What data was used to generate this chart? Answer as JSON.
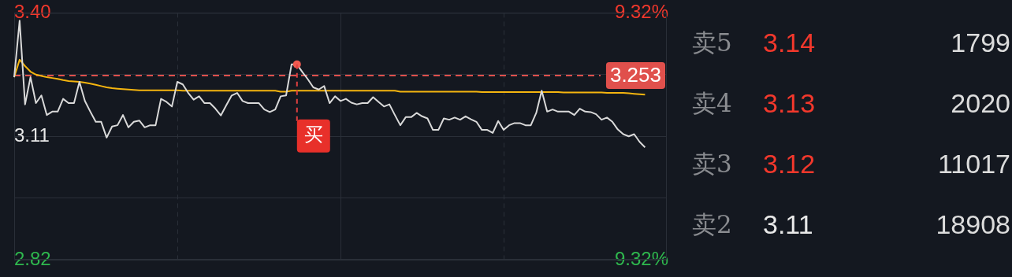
{
  "chart_data": [
    {
      "type": "line",
      "categories": [
        null,
        null,
        null,
        null,
        null,
        null,
        null,
        null,
        null,
        null,
        null,
        null,
        null,
        null,
        null,
        null,
        null,
        null,
        null,
        null,
        null,
        null,
        null,
        null,
        null,
        null,
        null,
        null,
        null,
        null,
        null,
        null,
        null,
        null,
        null,
        null,
        null,
        null,
        null,
        null,
        null,
        null,
        null,
        null,
        null,
        null,
        null,
        null,
        null,
        null,
        null,
        null,
        null,
        null,
        null,
        null,
        null,
        null,
        null,
        null,
        null,
        null,
        null,
        null,
        null,
        null,
        null,
        null,
        null,
        null,
        null,
        null,
        null,
        null,
        null,
        null,
        null,
        null,
        null,
        null,
        null,
        null,
        null,
        null,
        null,
        null,
        null,
        null,
        null,
        null,
        null,
        null,
        null,
        null,
        null,
        null,
        null,
        null,
        null,
        null,
        null,
        null,
        null,
        null,
        null,
        null,
        null,
        null,
        null,
        null,
        null,
        null,
        null,
        null,
        null,
        null,
        null,
        null,
        null,
        null,
        null
      ],
      "series": [
        {
          "color": "#d9d9d9",
          "values": [
            3.249,
            3.382,
            3.185,
            3.249,
            3.188,
            3.206,
            3.16,
            3.168,
            3.168,
            3.198,
            3.188,
            3.188,
            3.238,
            3.193,
            3.168,
            3.144,
            3.144,
            3.107,
            3.133,
            3.136,
            3.16,
            3.131,
            3.144,
            3.147,
            3.131,
            3.136,
            3.136,
            3.198,
            3.191,
            3.18,
            3.238,
            3.232,
            3.212,
            3.196,
            3.204,
            3.188,
            3.188,
            3.175,
            3.159,
            3.183,
            3.206,
            3.212,
            3.193,
            3.188,
            3.188,
            3.188,
            3.173,
            3.167,
            3.173,
            3.204,
            3.206,
            3.279,
            3.279,
            3.261,
            3.244,
            3.225,
            3.22,
            3.228,
            3.188,
            3.204,
            3.193,
            3.198,
            3.189,
            3.185,
            3.188,
            3.188,
            3.202,
            3.191,
            3.18,
            3.185,
            3.16,
            3.136,
            3.155,
            3.155,
            3.165,
            3.157,
            3.152,
            3.125,
            3.125,
            3.152,
            3.149,
            3.154,
            3.149,
            3.157,
            3.15,
            3.144,
            3.125,
            3.125,
            3.118,
            3.146,
            3.125,
            3.136,
            3.141,
            3.141,
            3.136,
            3.136,
            3.165,
            3.217,
            3.168,
            3.173,
            3.168,
            3.168,
            3.168,
            3.16,
            3.175,
            3.168,
            3.167,
            3.162,
            3.149,
            3.154,
            3.144,
            3.126,
            3.115,
            3.11,
            3.115,
            3.097,
            3.084,
            null,
            null,
            null,
            null
          ]
        },
        {
          "color": "#f5b50f",
          "values": [
            3.249,
            3.29,
            3.275,
            3.262,
            3.255,
            3.252,
            3.249,
            3.247,
            3.245,
            3.242,
            3.24,
            3.239,
            3.238,
            3.236,
            3.234,
            3.231,
            3.228,
            3.225,
            3.223,
            3.222,
            3.221,
            3.22,
            3.219,
            3.218,
            3.218,
            3.218,
            3.218,
            3.218,
            3.218,
            3.218,
            3.218,
            3.217,
            3.217,
            3.217,
            3.217,
            3.217,
            3.217,
            3.217,
            3.217,
            3.217,
            3.217,
            3.217,
            3.217,
            3.217,
            3.217,
            3.217,
            3.217,
            3.217,
            3.217,
            3.215,
            3.215,
            3.217,
            3.217,
            3.217,
            3.217,
            3.217,
            3.217,
            3.217,
            3.217,
            3.217,
            3.217,
            3.217,
            3.217,
            3.217,
            3.217,
            3.217,
            3.217,
            3.217,
            3.217,
            3.217,
            3.217,
            3.215,
            3.215,
            3.215,
            3.215,
            3.215,
            3.215,
            3.215,
            3.215,
            3.215,
            3.215,
            3.215,
            3.215,
            3.215,
            3.215,
            3.215,
            3.214,
            3.214,
            3.214,
            3.214,
            3.214,
            3.214,
            3.214,
            3.214,
            3.214,
            3.214,
            3.214,
            3.214,
            3.214,
            3.214,
            3.214,
            3.213,
            3.213,
            3.213,
            3.213,
            3.213,
            3.213,
            3.213,
            3.213,
            3.212,
            3.212,
            3.212,
            3.212,
            3.211,
            3.21,
            3.209,
            3.208,
            null,
            null,
            null,
            null
          ]
        }
      ],
      "ylim": [
        2.82,
        3.4
      ],
      "yticks": [
        {
          "value": 3.4,
          "label": "3.40"
        },
        {
          "value": 3.255,
          "label": null
        },
        {
          "value": 3.11,
          "label": "3.11"
        },
        {
          "value": 2.965,
          "label": null
        },
        {
          "value": 2.82,
          "label": "2.82"
        }
      ],
      "y2lim": [
        -9.32,
        9.32
      ],
      "y2ticks": [
        {
          "value": 9.32,
          "label": "9.32%"
        },
        {
          "value": -9.32,
          "label": "9.32%"
        }
      ],
      "ref_lines": [
        {
          "axis": "y",
          "value": 3.253,
          "label": "3.253",
          "color": "#e0504c",
          "line_style": "dashed"
        }
      ],
      "annotations": [
        "买",
        "卖5 3.14 1799",
        "卖4 3.13 2020",
        "卖3 3.12 11017",
        "卖2 3.11 18908"
      ],
      "grid": true,
      "legend": false,
      "marker": "none",
      "line_style": "solid",
      "tick_labels": "y"
    }
  ]
}
